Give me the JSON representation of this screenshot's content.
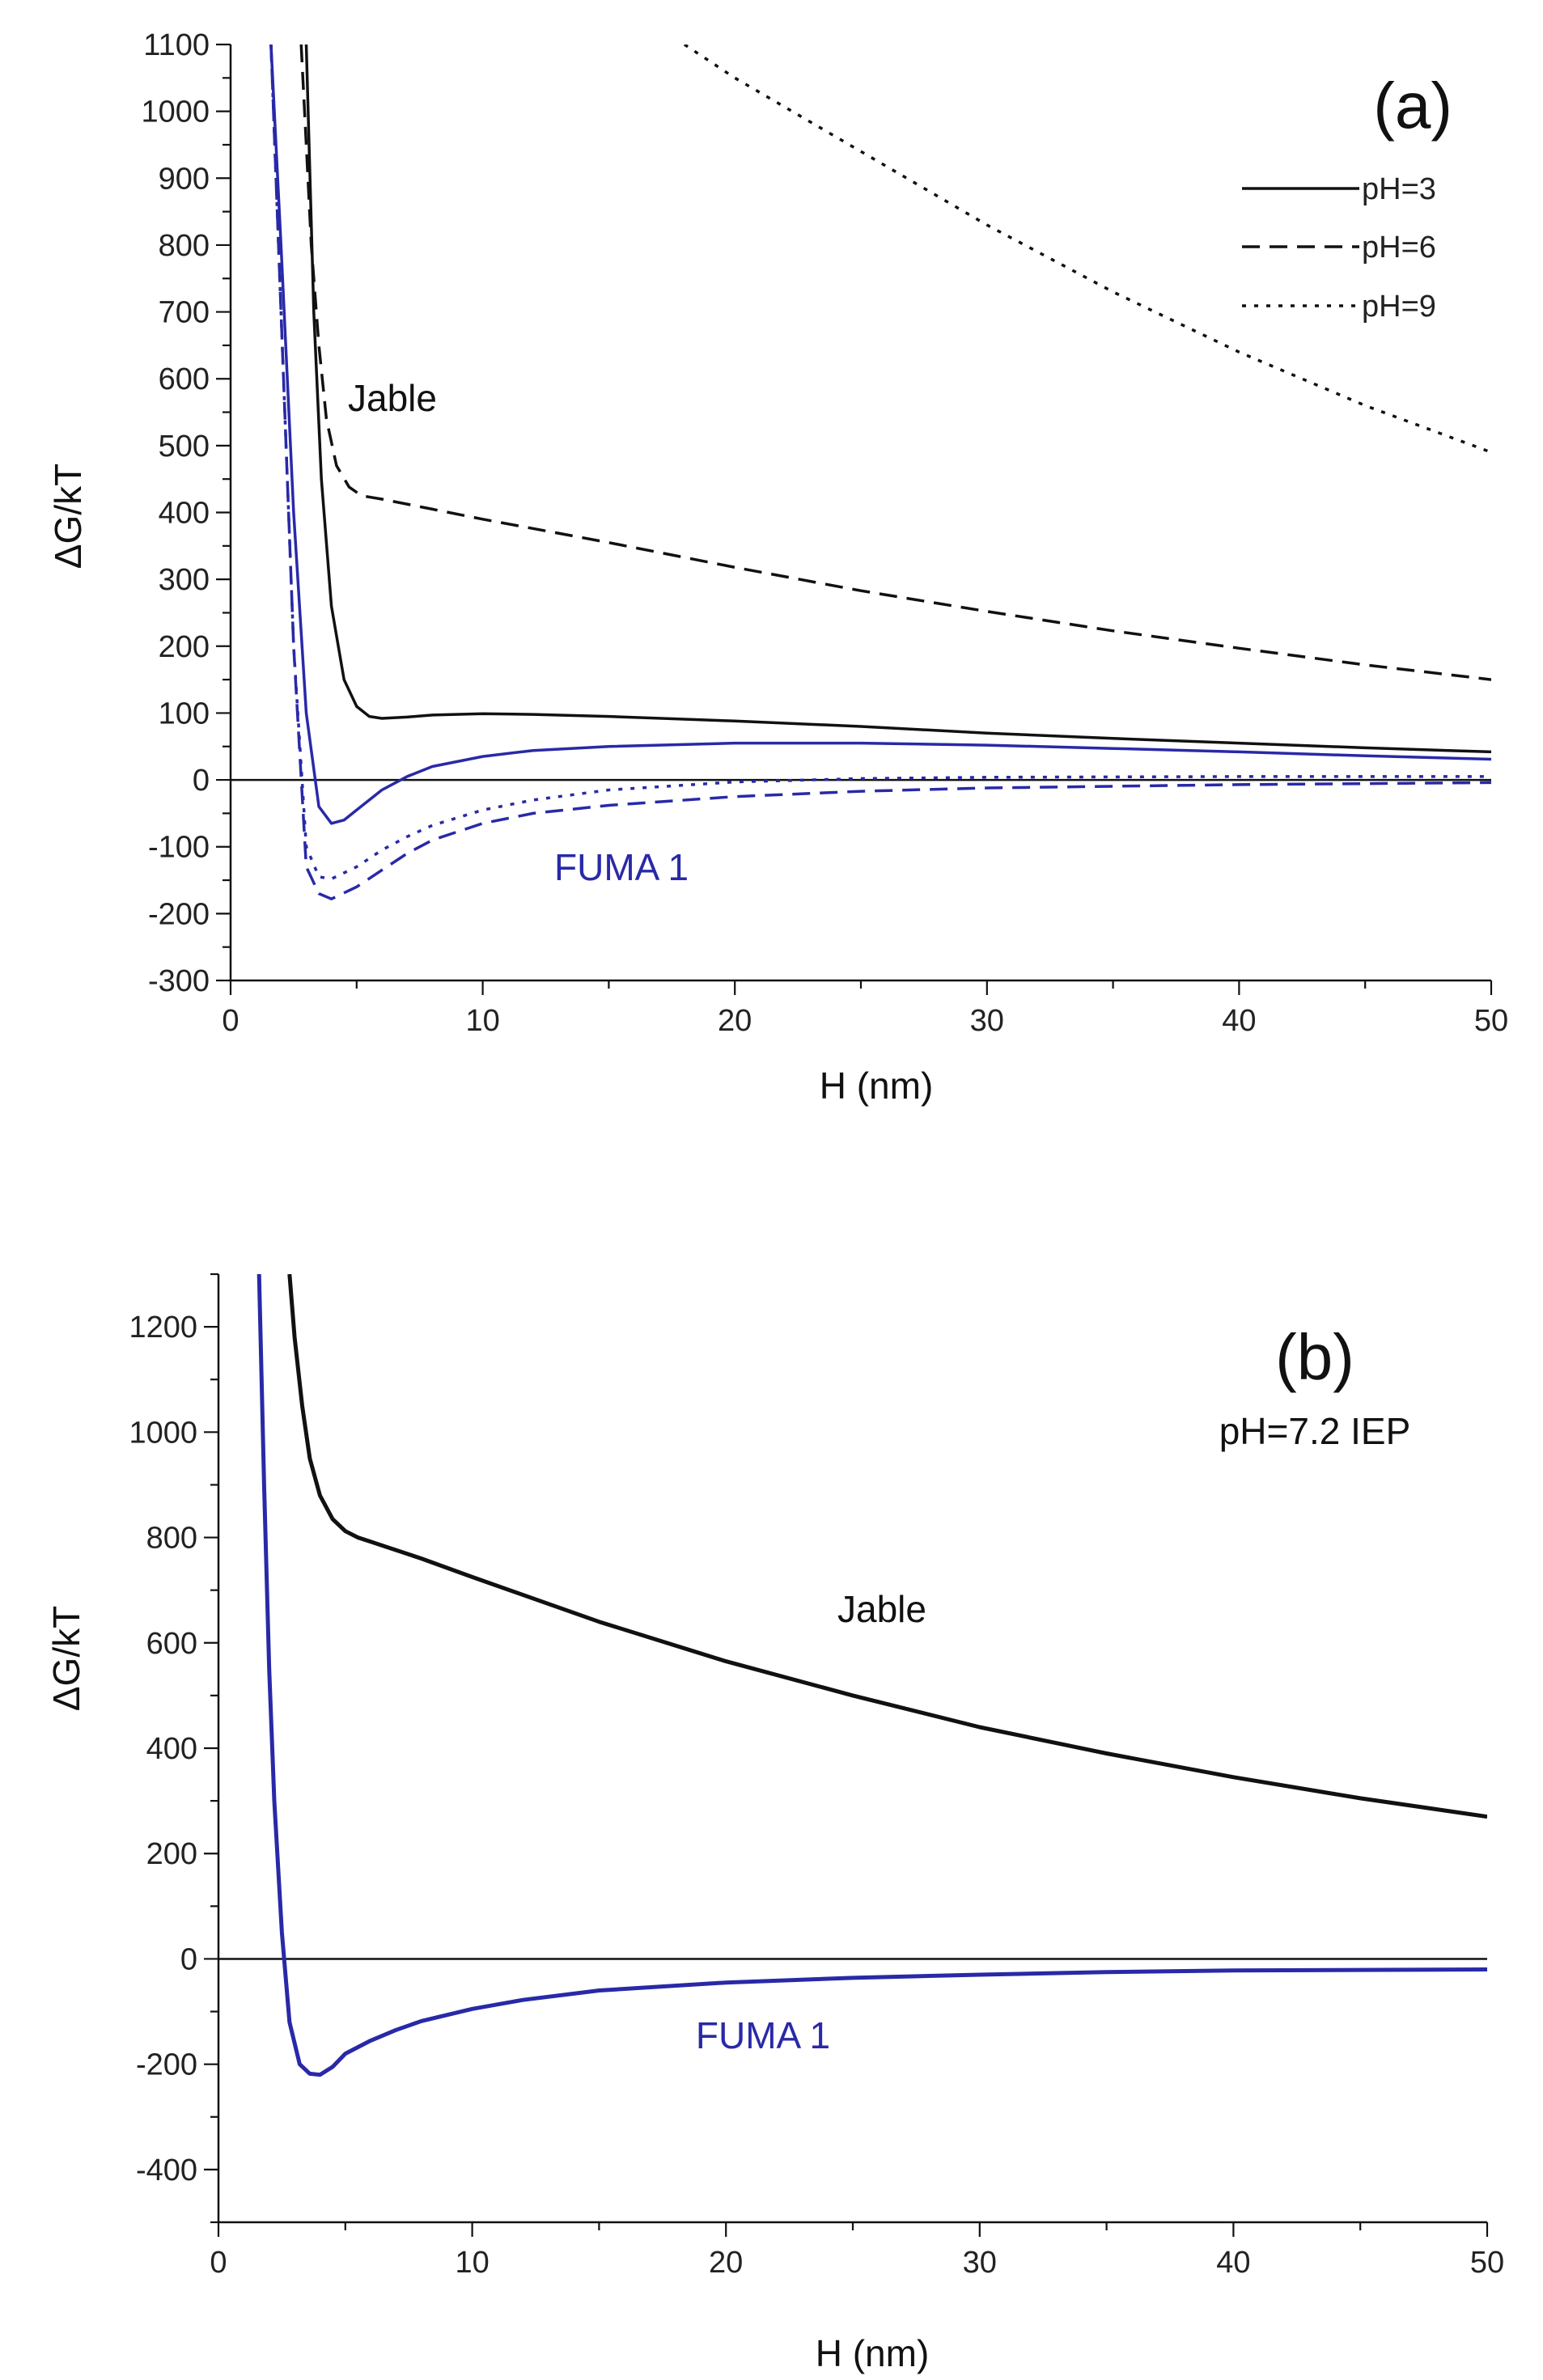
{
  "chart_data": [
    {
      "panel": "(a)",
      "type": "line",
      "title": "",
      "xlabel": "H (nm)",
      "ylabel": "ΔG/kT",
      "xlim": [
        0,
        50
      ],
      "ylim": [
        -300,
        1100
      ],
      "xticks": [
        0,
        10,
        20,
        30,
        40,
        50
      ],
      "yticks": [
        -300,
        -200,
        -100,
        0,
        100,
        200,
        300,
        400,
        500,
        600,
        700,
        800,
        900,
        1000,
        1100
      ],
      "zero_line": true,
      "legend": {
        "position": "top-right",
        "entries": [
          {
            "label": "pH=3",
            "style": "solid"
          },
          {
            "label": "pH=6",
            "style": "dashed"
          },
          {
            "label": "pH=9",
            "style": "dotted"
          }
        ]
      },
      "annotations": [
        {
          "text": "Jable",
          "color": "#111111",
          "x": 7,
          "y": 570
        },
        {
          "text": "FUMA 1",
          "color": "#2929a8",
          "x": 16.5,
          "y": -135
        }
      ],
      "series": [
        {
          "name": "Jable pH=3",
          "color": "#111111",
          "style": "solid",
          "x": [
            3.0,
            3.3,
            3.6,
            4.0,
            4.5,
            5.0,
            5.5,
            6.0,
            7.0,
            8.0,
            10.0,
            12.0,
            15.0,
            20.0,
            25.0,
            30.0,
            35.0,
            40.0,
            45.0,
            50.0
          ],
          "y": [
            1100,
            700,
            450,
            260,
            150,
            110,
            95,
            92,
            94,
            97,
            99,
            98,
            95,
            88,
            80,
            70,
            62,
            55,
            48,
            42
          ]
        },
        {
          "name": "Jable pH=6",
          "color": "#111111",
          "style": "dashed",
          "x": [
            2.8,
            3.0,
            3.2,
            3.5,
            3.8,
            4.2,
            4.7,
            5.2,
            6.0,
            8.0,
            10.0,
            15.0,
            20.0,
            25.0,
            30.0,
            35.0,
            40.0,
            45.0,
            50.0
          ],
          "y": [
            1100,
            950,
            800,
            650,
            540,
            470,
            438,
            425,
            420,
            405,
            390,
            355,
            318,
            283,
            252,
            223,
            197,
            172,
            150
          ]
        },
        {
          "name": "Jable pH=9",
          "color": "#111111",
          "style": "dotted",
          "x": [
            18.0,
            20.0,
            25.0,
            30.0,
            35.0,
            40.0,
            45.0,
            50.0
          ],
          "y": [
            1100,
            1050,
            940,
            830,
            730,
            640,
            560,
            490
          ]
        },
        {
          "name": "FUMA 1 pH=3",
          "color": "#2929a8",
          "style": "solid",
          "x": [
            1.6,
            2.0,
            2.5,
            3.0,
            3.5,
            4.0,
            4.5,
            5.0,
            6.0,
            7.0,
            8.0,
            10.0,
            12.0,
            15.0,
            20.0,
            25.0,
            30.0,
            35.0,
            40.0,
            45.0,
            50.0
          ],
          "y": [
            1100,
            800,
            400,
            100,
            -40,
            -65,
            -60,
            -45,
            -15,
            5,
            20,
            35,
            44,
            50,
            55,
            55,
            52,
            47,
            42,
            36,
            31
          ]
        },
        {
          "name": "FUMA 1 pH=6",
          "color": "#2929a8",
          "style": "dashed",
          "x": [
            1.6,
            2.0,
            2.5,
            3.0,
            3.5,
            4.0,
            5.0,
            6.0,
            7.0,
            8.0,
            10.0,
            12.0,
            15.0,
            20.0,
            25.0,
            30.0,
            40.0,
            50.0
          ],
          "y": [
            1100,
            700,
            200,
            -130,
            -170,
            -178,
            -160,
            -135,
            -110,
            -90,
            -65,
            -50,
            -38,
            -25,
            -17,
            -12,
            -7,
            -4
          ]
        },
        {
          "name": "FUMA 1 pH=9",
          "color": "#2929a8",
          "style": "dotted",
          "x": [
            1.6,
            2.0,
            2.5,
            3.0,
            3.5,
            4.0,
            5.0,
            6.0,
            7.0,
            8.0,
            10.0,
            12.0,
            15.0,
            20.0,
            25.0,
            30.0,
            40.0,
            50.0
          ],
          "y": [
            1100,
            700,
            200,
            -100,
            -145,
            -148,
            -130,
            -105,
            -85,
            -68,
            -45,
            -30,
            -15,
            -3,
            2,
            4,
            5,
            5
          ]
        }
      ]
    },
    {
      "panel": "(b)",
      "type": "line",
      "title": "",
      "xlabel": "H (nm)",
      "ylabel": "ΔG/kT",
      "xlim": [
        0,
        50
      ],
      "ylim": [
        -500,
        1300
      ],
      "xticks": [
        0,
        10,
        20,
        30,
        40,
        50
      ],
      "yticks": [
        -400,
        -200,
        0,
        200,
        400,
        600,
        800,
        1000,
        1200
      ],
      "zero_line": true,
      "note": "pH=7.2 IEP",
      "annotations": [
        {
          "text": "Jable",
          "color": "#111111",
          "x": 26.5,
          "y": 600
        },
        {
          "text": "FUMA 1",
          "color": "#2929a8",
          "x": 21,
          "y": -215
        }
      ],
      "series": [
        {
          "name": "Jable",
          "color": "#111111",
          "style": "solid",
          "x": [
            2.8,
            3.0,
            3.3,
            3.6,
            4.0,
            4.5,
            5.0,
            5.5,
            6.0,
            8.0,
            10.0,
            15.0,
            20.0,
            25.0,
            30.0,
            35.0,
            40.0,
            45.0,
            50.0
          ],
          "y": [
            1300,
            1180,
            1050,
            950,
            880,
            835,
            812,
            800,
            792,
            760,
            725,
            640,
            565,
            500,
            440,
            390,
            345,
            305,
            270
          ]
        },
        {
          "name": "FUMA 1",
          "color": "#2929a8",
          "style": "solid",
          "x": [
            1.6,
            1.8,
            2.0,
            2.2,
            2.5,
            2.8,
            3.2,
            3.6,
            4.0,
            4.5,
            5.0,
            6.0,
            7.0,
            8.0,
            10.0,
            12.0,
            15.0,
            20.0,
            25.0,
            30.0,
            35.0,
            40.0,
            45.0,
            50.0
          ],
          "y": [
            1300,
            900,
            550,
            300,
            50,
            -120,
            -200,
            -218,
            -220,
            -205,
            -180,
            -155,
            -135,
            -118,
            -95,
            -78,
            -60,
            -45,
            -36,
            -30,
            -25,
            -22,
            -21,
            -20
          ]
        }
      ]
    }
  ]
}
